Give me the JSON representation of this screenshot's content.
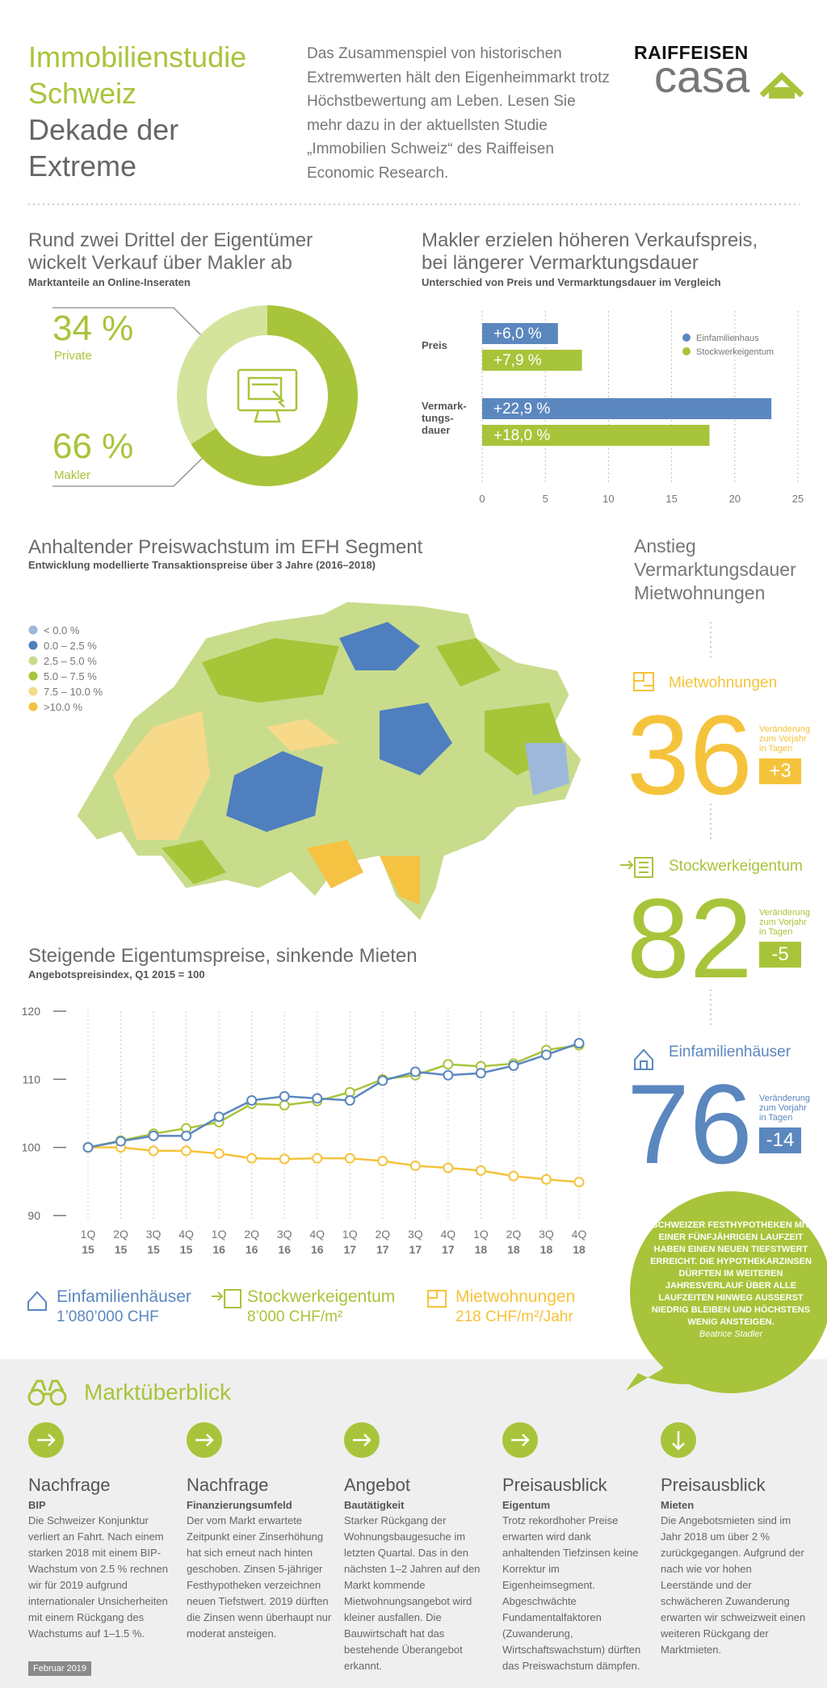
{
  "header": {
    "title": "Immobilienstudie\nSchweiz",
    "subtitle": "Dekade der\nExtreme",
    "intro": "Das Zusammenspiel von historischen Extremwerten hält den Eigenheimmarkt trotz Höchstbewertung am Leben. Lesen Sie mehr dazu in der aktuellsten Studie „Immobilien Schweiz“ des Raiffeisen Economic Research.",
    "logo": {
      "brand": "RAIFFEISEN",
      "product": "casa"
    }
  },
  "chart_data": [
    {
      "type": "pie",
      "donut": true,
      "title": "Rund zwei Drittel der Eigentümer\nwickelt Verkauf über Makler ab",
      "subtitle": "Marktanteile an Online-Inseraten",
      "categories": [
        "Private",
        "Makler"
      ],
      "values": [
        34,
        66
      ],
      "value_labels": [
        "34 %",
        "66 %"
      ],
      "colors": [
        "#d4e49c",
        "#a8c43a"
      ]
    },
    {
      "type": "bar",
      "orientation": "horizontal",
      "title": "Makler erzielen höheren Verkaufspreis,\nbei längerer Vermarktungsdauer",
      "subtitle": "Unterschied von Preis und Vermarktungsdauer im Vergleich",
      "categories": [
        "Preis",
        "Vermark-\ntungs-\ndauer"
      ],
      "series": [
        {
          "name": "Einfamilienhaus",
          "color": "#5b87bf",
          "values": [
            6.0,
            22.9
          ],
          "value_labels": [
            "+6,0 %",
            "+22,9 %"
          ]
        },
        {
          "name": "Stockwerkeigentum",
          "color": "#a8c43a",
          "values": [
            7.9,
            18.0
          ],
          "value_labels": [
            "+7,9 %",
            "+18,0 %"
          ]
        }
      ],
      "xlim": [
        0,
        25
      ],
      "xticks": [
        0,
        5,
        10,
        15,
        20,
        25
      ],
      "grid": true,
      "legend": "upper right"
    },
    {
      "type": "map",
      "title": "Anhaltender Preiswachstum im EFH Segment",
      "subtitle": "Entwicklung modellierte Transaktionspreise über 3 Jahre (2016–2018)",
      "legend": {
        "labels": [
          "< 0.0 %",
          "0.0 – 2.5 %",
          "2.5 – 5.0 %",
          "5.0 – 7.5 %",
          "7.5 – 10.0 %",
          ">10.0 %"
        ],
        "colors": [
          "#9db8d9",
          "#4f7fbf",
          "#c9dc8c",
          "#a7c539",
          "#f7d98a",
          "#f5c242"
        ]
      }
    },
    {
      "type": "line",
      "title": "Steigende Eigentumspreise, sinkende Mieten",
      "subtitle": "Angebotspreisindex, Q1 2015 = 100",
      "categories": [
        "1Q\n15",
        "2Q\n15",
        "3Q\n15",
        "4Q\n15",
        "1Q\n16",
        "2Q\n16",
        "3Q\n16",
        "4Q\n16",
        "1Q\n17",
        "2Q\n17",
        "3Q\n17",
        "4Q\n17",
        "1Q\n18",
        "2Q\n18",
        "3Q\n18",
        "4Q\n18"
      ],
      "series": [
        {
          "name": "Einfamilienhäuser",
          "color": "#5b87bf",
          "values": [
            100,
            100.9,
            101.7,
            101.7,
            104.5,
            106.9,
            107.5,
            107.2,
            106.9,
            109.8,
            111.1,
            110.6,
            110.9,
            112.0,
            113.6,
            115.3
          ]
        },
        {
          "name": "Stockwerkeigentum",
          "color": "#a8c43a",
          "values": [
            100,
            101.0,
            102.0,
            102.8,
            103.7,
            106.4,
            106.2,
            106.8,
            108.1,
            110.0,
            110.6,
            112.2,
            111.9,
            112.3,
            114.3,
            115.0
          ]
        },
        {
          "name": "Mietwohnungen",
          "color": "#f5c33b",
          "values": [
            100,
            100.0,
            99.5,
            99.5,
            99.1,
            98.4,
            98.3,
            98.4,
            98.4,
            98.0,
            97.3,
            97.0,
            96.6,
            95.8,
            95.3,
            94.9
          ]
        }
      ],
      "legend_values": [
        "1’080’000 CHF",
        "8’000 CHF/m²",
        "218 CHF/m²/Jahr"
      ],
      "ylim": [
        90,
        120
      ],
      "yticks": [
        90,
        100,
        110,
        120
      ]
    }
  ],
  "stats": {
    "title": "Anstieg\nVermarktungsdauer\nMietwohnungen",
    "items": [
      {
        "label": "Mietwohnungen",
        "value": 36,
        "change_label": "Veränderung\nzum Vorjahr\nin Tagen",
        "change": "+3",
        "color": "#f5c33b"
      },
      {
        "label": "Stockwerkeigentum",
        "value": 82,
        "change_label": "Veränderung\nzum Vorjahr\nin Tagen",
        "change": "-5",
        "color": "#a8c43a"
      },
      {
        "label": "Einfamilienhäuser",
        "value": 76,
        "change_label": "Veränderung\nzum Vorjahr\nin Tagen",
        "change": "-14",
        "color": "#5b87bf"
      }
    ]
  },
  "quote": {
    "text": "SCHWEIZER FESTHYPOTHEKEN MIT EINER FÜNFJÄHRIGEN LAUFZEIT HABEN EINEN NEUEN TIEFSTWERT ERREICHT. DIE HYPOTHEKARZINSEN DÜRFTEN IM WEITEREN JAHRESVERLAUF ÜBER ALLE LAUFZEITEN HINWEG AUSSERST NIEDRIG BLEIBEN UND HÖCHSTENS WENIG ANSTEIGEN.",
    "author": "Beatrice Stadler"
  },
  "overview": {
    "title": "Marktüberblick",
    "items": [
      {
        "heading": "Nachfrage",
        "sub": "BIP",
        "text": "Die Schweizer Konjunktur verliert an Fahrt. Nach einem starken 2018 mit einem BIP-Wachstum von 2.5 % rechnen wir für 2019 aufgrund internationaler Unsicherheiten mit einem Rückgang des Wachstums auf 1–1.5 %."
      },
      {
        "heading": "Nachfrage",
        "sub": "Finanzierungsumfeld",
        "text": "Der vom Markt erwartete Zeitpunkt einer Zinserhöhung hat sich erneut nach hinten geschoben. Zinsen 5-jähriger Festhypotheken verzeichnen neuen Tiefstwert. 2019 dürften die Zinsen wenn überhaupt nur moderat ansteigen."
      },
      {
        "heading": "Angebot",
        "sub": "Bautätigkeit",
        "text": "Starker Rückgang der Wohnungsbaugesuche im letzten Quartal. Das in den nächsten 1–2 Jahren auf den Markt kommende Mietwohnungsangebot wird kleiner ausfallen. Die Bauwirtschaft hat das bestehende Überangebot erkannt."
      },
      {
        "heading": "Preisausblick",
        "sub": "Eigentum",
        "text": "Trotz rekordhoher Preise erwarten wird dank anhaltenden Tiefzinsen keine Korrektur im Eigenheimsegment. Abgeschwächte Fundamentalfaktoren (Zuwanderung, Wirtschaftswachstum) dürften das Preiswachstum dämpfen."
      },
      {
        "heading": "Preisausblick",
        "sub": "Mieten",
        "text": "Die Angebotsmieten sind im Jahr 2018 um über 2 % zurückgegangen. Aufgrund der nach wie vor hohen Leerstände und der schwächeren Zuwanderung erwarten wir schweizweit einen weiteren Rückgang der Marktmieten."
      }
    ]
  },
  "footer": "Februar 2019"
}
